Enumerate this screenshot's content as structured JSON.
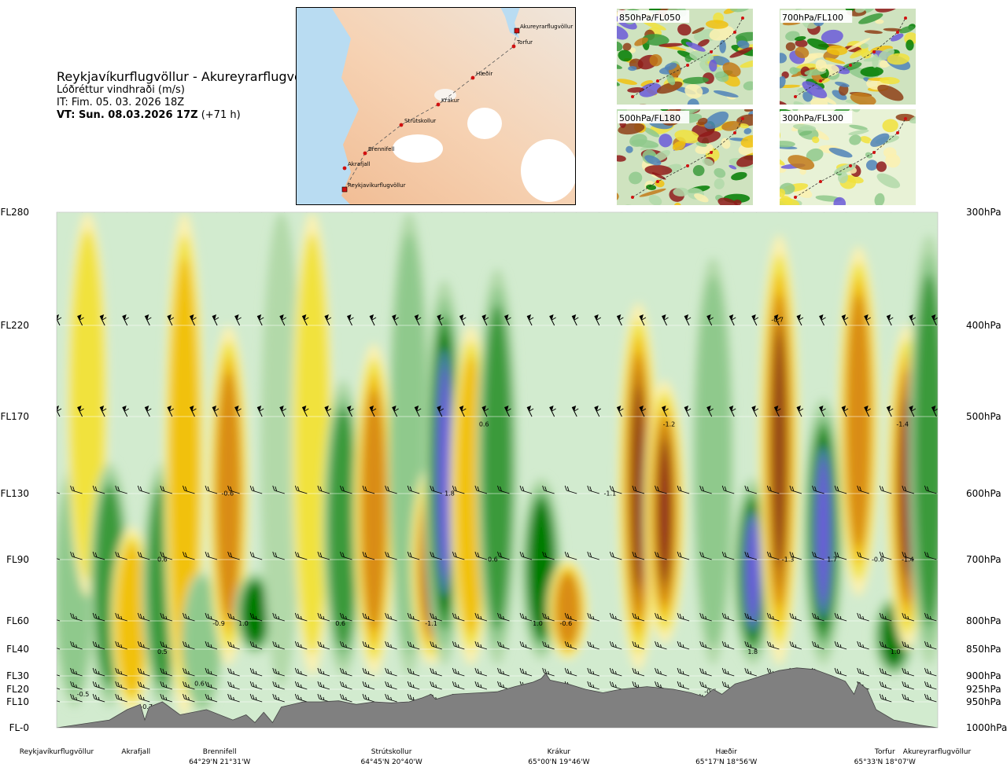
{
  "header": {
    "title": "Reykjavíkurflugvöllur - Akureyrarflugvöllur",
    "variable": "Lóðréttur vindhraði (m/s)",
    "issue": "IT: Fim. 05. 03. 2026 18Z",
    "valid": "VT: Sun. 08.03.2026 17Z",
    "lead": "(+71 h)"
  },
  "route_map": {
    "stations": [
      {
        "name": "Akureyrarflugvöllur",
        "end": true
      },
      {
        "name": "Torfur"
      },
      {
        "name": "Hæðir"
      },
      {
        "name": "Krákur"
      },
      {
        "name": "Strútskollur"
      },
      {
        "name": "Brennifell"
      },
      {
        "name": "Akrafjall"
      },
      {
        "name": "Reykjavíkurflugvöllur",
        "end": true
      }
    ]
  },
  "thumbnails": [
    {
      "label": "850hPa/FL050"
    },
    {
      "label": "700hPa/FL100"
    },
    {
      "label": "500hPa/FL180"
    },
    {
      "label": "300hPa/FL300"
    }
  ],
  "chart_data": {
    "type": "heatmap",
    "left_axis": [
      {
        "label": "FL280",
        "p": 300
      },
      {
        "label": "FL220",
        "p": 400
      },
      {
        "label": "FL170",
        "p": 500
      },
      {
        "label": "FL130",
        "p": 600
      },
      {
        "label": "FL90",
        "p": 700
      },
      {
        "label": "FL60",
        "p": 800
      },
      {
        "label": "FL40",
        "p": 850
      },
      {
        "label": "FL30",
        "p": 900
      },
      {
        "label": "FL20",
        "p": 925
      },
      {
        "label": "FL10",
        "p": 950
      },
      {
        "label": "FL-0",
        "p": 1000
      }
    ],
    "right_axis": [
      "300hPa",
      "400hPa",
      "500hPa",
      "600hPa",
      "700hPa",
      "800hPa",
      "850hPa",
      "900hPa",
      "925hPa",
      "950hPa",
      "1000hPa"
    ],
    "waypoints": [
      {
        "name": "Reykjavíkurflugvöllur",
        "coord": "",
        "d": 0.0
      },
      {
        "name": "Akrafjall",
        "coord": "",
        "d": 0.09
      },
      {
        "name": "Brennifell",
        "coord": "64°29'N 21°31'W",
        "d": 0.185
      },
      {
        "name": "Strútskollur",
        "coord": "64°45'N 20°40'W",
        "d": 0.38
      },
      {
        "name": "Krákur",
        "coord": "65°00'N 19°46'W",
        "d": 0.57
      },
      {
        "name": "Hæðir",
        "coord": "65°17'N 18°56'W",
        "d": 0.76
      },
      {
        "name": "Torfur",
        "coord": "65°33'N 18°07'W",
        "d": 0.94
      },
      {
        "name": "Akureyrarflugvöllur",
        "coord": "",
        "d": 1.0
      }
    ],
    "color_scale": [
      "#6b5ad9",
      "#4f83b8",
      "#017c01",
      "#3b9a3b",
      "#8fc98c",
      "#b2d9a9",
      "#d2ebcf",
      "#ffffff",
      "#fbf1b0",
      "#f1e23c",
      "#f1c10f",
      "#d98c12",
      "#c27a19",
      "#8e3f16",
      "#8f1a1a"
    ],
    "columns": [
      {
        "d": 0.02,
        "p1": 560,
        "p2": 960,
        "v": 0.45
      },
      {
        "d": 0.035,
        "p1": 300,
        "p2": 760,
        "v": -0.25
      },
      {
        "d": 0.06,
        "p1": 560,
        "p2": 960,
        "v": 0.6
      },
      {
        "d": 0.085,
        "p1": 650,
        "p2": 970,
        "v": -0.45
      },
      {
        "d": 0.12,
        "p1": 560,
        "p2": 960,
        "v": 0.65
      },
      {
        "d": 0.145,
        "p1": 300,
        "p2": 980,
        "v": -0.35
      },
      {
        "d": 0.165,
        "p1": 720,
        "p2": 970,
        "v": 0.35
      },
      {
        "d": 0.195,
        "p1": 400,
        "p2": 880,
        "v": -0.65
      },
      {
        "d": 0.225,
        "p1": 720,
        "p2": 860,
        "v": 1.0
      },
      {
        "d": 0.255,
        "p1": 300,
        "p2": 920,
        "v": 0.25
      },
      {
        "d": 0.29,
        "p1": 300,
        "p2": 900,
        "v": -0.25
      },
      {
        "d": 0.325,
        "p1": 460,
        "p2": 900,
        "v": 0.6
      },
      {
        "d": 0.36,
        "p1": 420,
        "p2": 900,
        "v": -0.55
      },
      {
        "d": 0.4,
        "p1": 300,
        "p2": 900,
        "v": 0.3
      },
      {
        "d": 0.425,
        "p1": 560,
        "p2": 880,
        "v": -1.1
      },
      {
        "d": 0.44,
        "p1": 360,
        "p2": 880,
        "v": 1.8
      },
      {
        "d": 0.47,
        "p1": 400,
        "p2": 880,
        "v": -0.45
      },
      {
        "d": 0.5,
        "p1": 350,
        "p2": 880,
        "v": 0.6
      },
      {
        "d": 0.55,
        "p1": 580,
        "p2": 870,
        "v": 1.0
      },
      {
        "d": 0.58,
        "p1": 700,
        "p2": 870,
        "v": -0.6
      },
      {
        "d": 0.66,
        "p1": 380,
        "p2": 890,
        "v": -0.95
      },
      {
        "d": 0.69,
        "p1": 460,
        "p2": 840,
        "v": -1.2
      },
      {
        "d": 0.745,
        "p1": 340,
        "p2": 880,
        "v": 0.3
      },
      {
        "d": 0.79,
        "p1": 580,
        "p2": 880,
        "v": 1.8
      },
      {
        "d": 0.82,
        "p1": 320,
        "p2": 880,
        "v": -0.95
      },
      {
        "d": 0.87,
        "p1": 480,
        "p2": 880,
        "v": 1.7
      },
      {
        "d": 0.91,
        "p1": 330,
        "p2": 760,
        "v": -0.6
      },
      {
        "d": 0.95,
        "p1": 760,
        "p2": 900,
        "v": 1.0
      },
      {
        "d": 0.965,
        "p1": 400,
        "p2": 850,
        "v": -1.4
      },
      {
        "d": 0.99,
        "p1": 320,
        "p2": 880,
        "v": 0.5
      }
    ],
    "value_labels": [
      {
        "text": "-0.5",
        "d": 0.03,
        "p": 935
      },
      {
        "text": "-0.7",
        "d": 0.102,
        "p": 960
      },
      {
        "text": "0.6",
        "d": 0.12,
        "p": 700
      },
      {
        "text": "0.5",
        "d": 0.12,
        "p": 855
      },
      {
        "text": "0.6",
        "d": 0.162,
        "p": 915
      },
      {
        "text": "-0.6",
        "d": 0.194,
        "p": 600
      },
      {
        "text": "-0.9",
        "d": 0.184,
        "p": 805
      },
      {
        "text": "1.0",
        "d": 0.212,
        "p": 805
      },
      {
        "text": "0.6",
        "d": 0.322,
        "p": 805
      },
      {
        "text": "-1.1",
        "d": 0.425,
        "p": 805
      },
      {
        "text": "1.8",
        "d": 0.446,
        "p": 600
      },
      {
        "text": "0.6",
        "d": 0.485,
        "p": 510
      },
      {
        "text": "0.6",
        "d": 0.495,
        "p": 700
      },
      {
        "text": "1.0",
        "d": 0.546,
        "p": 805
      },
      {
        "text": "-0.6",
        "d": 0.578,
        "p": 805
      },
      {
        "text": "-1.1",
        "d": 0.628,
        "p": 600
      },
      {
        "text": "-1.2",
        "d": 0.695,
        "p": 510
      },
      {
        "text": "-0.7",
        "d": 0.818,
        "p": 395
      },
      {
        "text": "1.8",
        "d": 0.79,
        "p": 855
      },
      {
        "text": "-0.6",
        "d": 0.742,
        "p": 930
      },
      {
        "text": "-1.3",
        "d": 0.83,
        "p": 700
      },
      {
        "text": "1.7",
        "d": 0.88,
        "p": 700
      },
      {
        "text": "-0.6",
        "d": 0.932,
        "p": 700
      },
      {
        "text": "-1.4",
        "d": 0.966,
        "p": 700
      },
      {
        "text": "-1.4",
        "d": 0.96,
        "p": 510
      },
      {
        "text": "1.0",
        "d": 0.952,
        "p": 855
      }
    ],
    "barb_levels": [
      300,
      400,
      500,
      600,
      700,
      800,
      850,
      900,
      925,
      950
    ],
    "terrain": [
      [
        0.0,
        1000
      ],
      [
        0.06,
        985
      ],
      [
        0.08,
        965
      ],
      [
        0.095,
        955
      ],
      [
        0.1,
        985
      ],
      [
        0.105,
        960
      ],
      [
        0.12,
        950
      ],
      [
        0.14,
        975
      ],
      [
        0.17,
        965
      ],
      [
        0.2,
        985
      ],
      [
        0.215,
        975
      ],
      [
        0.225,
        990
      ],
      [
        0.235,
        970
      ],
      [
        0.245,
        990
      ],
      [
        0.255,
        960
      ],
      [
        0.28,
        950
      ],
      [
        0.3,
        950
      ],
      [
        0.32,
        948
      ],
      [
        0.34,
        955
      ],
      [
        0.36,
        950
      ],
      [
        0.38,
        952
      ],
      [
        0.4,
        950
      ],
      [
        0.415,
        942
      ],
      [
        0.425,
        935
      ],
      [
        0.43,
        945
      ],
      [
        0.45,
        935
      ],
      [
        0.48,
        932
      ],
      [
        0.5,
        930
      ],
      [
        0.52,
        920
      ],
      [
        0.54,
        912
      ],
      [
        0.55,
        905
      ],
      [
        0.555,
        895
      ],
      [
        0.56,
        908
      ],
      [
        0.58,
        915
      ],
      [
        0.6,
        925
      ],
      [
        0.62,
        932
      ],
      [
        0.64,
        925
      ],
      [
        0.67,
        920
      ],
      [
        0.7,
        925
      ],
      [
        0.72,
        932
      ],
      [
        0.735,
        940
      ],
      [
        0.745,
        925
      ],
      [
        0.755,
        935
      ],
      [
        0.77,
        915
      ],
      [
        0.785,
        908
      ],
      [
        0.8,
        900
      ],
      [
        0.82,
        890
      ],
      [
        0.84,
        885
      ],
      [
        0.86,
        888
      ],
      [
        0.88,
        900
      ],
      [
        0.895,
        910
      ],
      [
        0.905,
        935
      ],
      [
        0.91,
        912
      ],
      [
        0.92,
        925
      ],
      [
        0.93,
        965
      ],
      [
        0.95,
        985
      ],
      [
        0.98,
        995
      ],
      [
        1.0,
        1000
      ]
    ]
  }
}
